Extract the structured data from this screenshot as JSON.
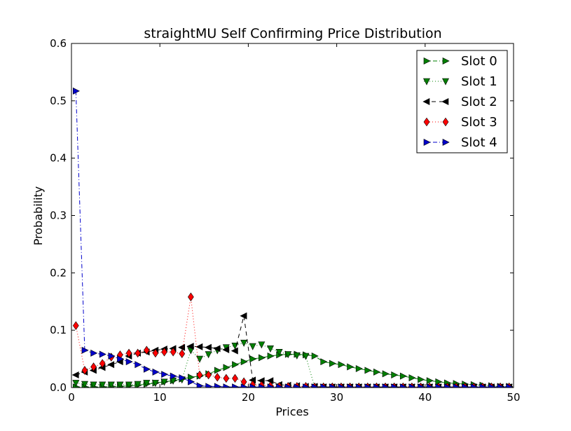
{
  "chart_data": {
    "type": "line",
    "title": "straightMU Self Confirming Price Distribution",
    "xlabel": "Prices",
    "ylabel": "Probability",
    "xlim": [
      0,
      50
    ],
    "ylim": [
      0,
      0.6
    ],
    "xticks": [
      "0",
      "10",
      "20",
      "30",
      "40",
      "50"
    ],
    "yticks": [
      "0.0",
      "0.1",
      "0.2",
      "0.3",
      "0.4",
      "0.5",
      "0.6"
    ],
    "grid": false,
    "legend_position": "top-right",
    "series": [
      {
        "name": "Slot 0",
        "color": "#008000",
        "marker": "triangle-right",
        "linestyle": "dashdot",
        "x": [
          0.5,
          1.5,
          2.5,
          3.5,
          4.5,
          5.5,
          6.5,
          7.5,
          8.5,
          9.5,
          10.5,
          11.5,
          12.5,
          13.5,
          14.5,
          15.5,
          16.5,
          17.5,
          18.5,
          19.5,
          20.5,
          21.5,
          22.5,
          23.5,
          24.5,
          25.5,
          26.5,
          27.5,
          28.5,
          29.5,
          30.5,
          31.5,
          32.5,
          33.5,
          34.5,
          35.5,
          36.5,
          37.5,
          38.5,
          39.5,
          40.5,
          41.5,
          42.5,
          43.5,
          44.5,
          45.5,
          46.5,
          47.5,
          48.5,
          49.5
        ],
        "y": [
          0.001,
          0.001,
          0.001,
          0.001,
          0.002,
          0.002,
          0.003,
          0.004,
          0.006,
          0.008,
          0.01,
          0.012,
          0.015,
          0.018,
          0.02,
          0.024,
          0.03,
          0.035,
          0.04,
          0.045,
          0.05,
          0.052,
          0.055,
          0.057,
          0.058,
          0.058,
          0.057,
          0.055,
          0.045,
          0.042,
          0.04,
          0.036,
          0.033,
          0.03,
          0.027,
          0.024,
          0.022,
          0.02,
          0.017,
          0.014,
          0.012,
          0.01,
          0.008,
          0.007,
          0.006,
          0.005,
          0.004,
          0.003,
          0.002,
          0.002
        ]
      },
      {
        "name": "Slot 1",
        "color": "#008000",
        "marker": "triangle-down",
        "linestyle": "dotted",
        "x": [
          0.5,
          1.5,
          2.5,
          3.5,
          4.5,
          5.5,
          6.5,
          7.5,
          8.5,
          9.5,
          10.5,
          11.5,
          12.5,
          13.5,
          14.5,
          15.5,
          16.5,
          17.5,
          18.5,
          19.5,
          20.5,
          21.5,
          22.5,
          23.5,
          24.5,
          25.5,
          26.5,
          27.5,
          28.5,
          29.5,
          30.5,
          31.5,
          32.5,
          33.5,
          34.5,
          35.5,
          36.5,
          37.5,
          38.5,
          39.5,
          40.5,
          41.5,
          42.5,
          43.5,
          44.5,
          45.5,
          46.5,
          47.5,
          48.5,
          49.5
        ],
        "y": [
          0.008,
          0.006,
          0.005,
          0.005,
          0.005,
          0.005,
          0.005,
          0.006,
          0.008,
          0.008,
          0.01,
          0.012,
          0.014,
          0.065,
          0.05,
          0.058,
          0.065,
          0.07,
          0.073,
          0.078,
          0.072,
          0.075,
          0.068,
          0.062,
          0.058,
          0.056,
          0.055,
          0.001,
          0.001,
          0.001,
          0.001,
          0.001,
          0.001,
          0.001,
          0.001,
          0.001,
          0.001,
          0.001,
          0.001,
          0.001,
          0.001,
          0.001,
          0.001,
          0.001,
          0.001,
          0.001,
          0.001,
          0.001,
          0.001,
          0.001
        ]
      },
      {
        "name": "Slot 2",
        "color": "#000000",
        "marker": "triangle-left",
        "linestyle": "dashed",
        "x": [
          0.5,
          1.5,
          2.5,
          3.5,
          4.5,
          5.5,
          6.5,
          7.5,
          8.5,
          9.5,
          10.5,
          11.5,
          12.5,
          13.5,
          14.5,
          15.5,
          16.5,
          17.5,
          18.5,
          19.5,
          20.5,
          21.5,
          22.5,
          23.5,
          24.5,
          25.5,
          26.5,
          27.5,
          28.5,
          29.5,
          30.5,
          31.5,
          32.5,
          33.5,
          34.5,
          35.5,
          36.5,
          37.5,
          38.5,
          39.5,
          40.5,
          41.5,
          42.5,
          43.5,
          44.5,
          45.5,
          46.5,
          47.5,
          48.5,
          49.5
        ],
        "y": [
          0.022,
          0.027,
          0.03,
          0.035,
          0.04,
          0.045,
          0.055,
          0.06,
          0.062,
          0.065,
          0.067,
          0.068,
          0.07,
          0.072,
          0.071,
          0.07,
          0.068,
          0.066,
          0.064,
          0.125,
          0.013,
          0.012,
          0.012,
          0.005,
          0.004,
          0.003,
          0.002,
          0.002,
          0.001,
          0.001,
          0.001,
          0.001,
          0.001,
          0.001,
          0.001,
          0.001,
          0.001,
          0.001,
          0.001,
          0.001,
          0.001,
          0.001,
          0.001,
          0.001,
          0.001,
          0.001,
          0.001,
          0.001,
          0.001,
          0.001
        ]
      },
      {
        "name": "Slot 3",
        "color": "#ff0000",
        "marker": "diamond",
        "linestyle": "dotted",
        "x": [
          0.5,
          1.5,
          2.5,
          3.5,
          4.5,
          5.5,
          6.5,
          7.5,
          8.5,
          9.5,
          10.5,
          11.5,
          12.5,
          13.5,
          14.5,
          15.5,
          16.5,
          17.5,
          18.5,
          19.5,
          20.5,
          21.5,
          22.5,
          23.5,
          24.5,
          25.5,
          26.5,
          27.5,
          28.5,
          29.5,
          30.5,
          31.5,
          32.5,
          33.5,
          34.5,
          35.5,
          36.5,
          37.5,
          38.5,
          39.5,
          40.5,
          41.5,
          42.5,
          43.5,
          44.5,
          45.5,
          46.5,
          47.5,
          48.5,
          49.5
        ],
        "y": [
          0.108,
          0.03,
          0.036,
          0.042,
          0.053,
          0.057,
          0.06,
          0.06,
          0.065,
          0.06,
          0.062,
          0.062,
          0.059,
          0.158,
          0.022,
          0.022,
          0.018,
          0.016,
          0.016,
          0.01,
          0.005,
          0.004,
          0.003,
          0.002,
          0.002,
          0.002,
          0.002,
          0.001,
          0.001,
          0.001,
          0.001,
          0.001,
          0.001,
          0.001,
          0.001,
          0.001,
          0.001,
          0.001,
          0.001,
          0.001,
          0.001,
          0.001,
          0.001,
          0.001,
          0.001,
          0.001,
          0.001,
          0.001,
          0.001,
          0.001
        ]
      },
      {
        "name": "Slot 4",
        "color": "#0000cc",
        "marker": "triangle-right",
        "linestyle": "dashdot",
        "x": [
          0.5,
          1.5,
          2.5,
          3.5,
          4.5,
          5.5,
          6.5,
          7.5,
          8.5,
          9.5,
          10.5,
          11.5,
          12.5,
          13.5,
          14.5,
          15.5,
          16.5,
          17.5,
          18.5,
          19.5,
          20.5,
          21.5,
          22.5,
          23.5,
          24.5,
          25.5,
          26.5,
          27.5,
          28.5,
          29.5,
          30.5,
          31.5,
          32.5,
          33.5,
          34.5,
          35.5,
          36.5,
          37.5,
          38.5,
          39.5,
          40.5,
          41.5,
          42.5,
          43.5,
          44.5,
          45.5,
          46.5,
          47.5,
          48.5,
          49.5
        ],
        "y": [
          0.517,
          0.065,
          0.06,
          0.058,
          0.055,
          0.05,
          0.045,
          0.04,
          0.032,
          0.027,
          0.023,
          0.02,
          0.017,
          0.01,
          0.003,
          0.002,
          0.002,
          0.001,
          0.001,
          0.001,
          0.001,
          0.001,
          0.001,
          0.001,
          0.001,
          0.001,
          0.001,
          0.001,
          0.001,
          0.001,
          0.001,
          0.001,
          0.001,
          0.001,
          0.001,
          0.001,
          0.001,
          0.001,
          0.001,
          0.001,
          0.001,
          0.001,
          0.001,
          0.001,
          0.001,
          0.001,
          0.001,
          0.001,
          0.001,
          0.001
        ]
      }
    ]
  }
}
